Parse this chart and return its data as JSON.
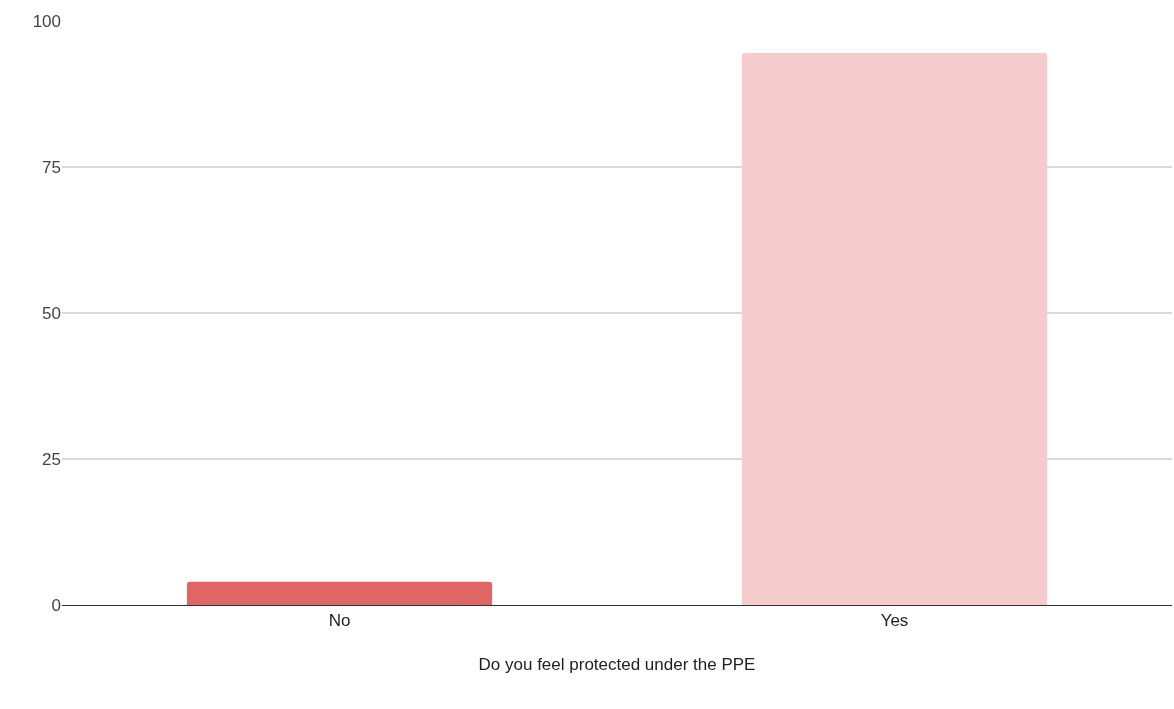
{
  "chart_data": {
    "type": "bar",
    "xlabel": "Do you feel protected under the PPE",
    "categories": [
      "No",
      "Yes"
    ],
    "values": [
      4,
      94.5
    ],
    "colors": [
      "#e06666",
      "#f4cccc"
    ],
    "ylim": [
      0,
      100
    ],
    "yticks": [
      0,
      25,
      50,
      75,
      100
    ],
    "grid": "y",
    "legend": false
  }
}
